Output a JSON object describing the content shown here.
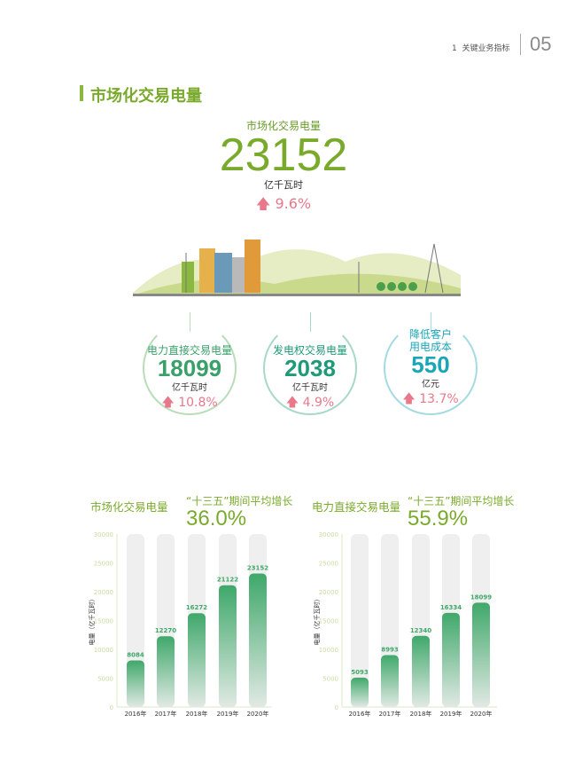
{
  "header": {
    "section_no": "1",
    "section_title": "关键业务指标",
    "page_no": "05"
  },
  "section_title": "市场化交易电量",
  "headline": {
    "label": "市场化交易电量",
    "value": "23152",
    "unit": "亿千瓦时",
    "growth": "9.6%"
  },
  "circles": [
    {
      "label": "电力直接交易电量",
      "value": "18099",
      "unit": "亿千瓦时",
      "growth": "10.8%",
      "color": "#3aa06a",
      "border": "#b9dcb9"
    },
    {
      "label": "发电权交易电量",
      "value": "2038",
      "unit": "亿千瓦时",
      "growth": "4.9%",
      "color": "#1e9a78",
      "border": "#a8d8c8"
    },
    {
      "label": "降低客户\n用电成本",
      "value": "550",
      "unit": "亿元",
      "growth": "13.7%",
      "color": "#1ba6b8",
      "border": "#a4dbe2"
    }
  ],
  "colors": {
    "accent": "#7aaa2c",
    "growth": "#e9788a",
    "bar": "#3fa86a"
  },
  "chart_data": [
    {
      "type": "bar",
      "title": "市场化交易电量",
      "subtitle": "“十三五”期间平均增长",
      "highlight": "36.0%",
      "ylabel": "电量（亿千瓦时）",
      "ylim": [
        0,
        30000
      ],
      "yticks": [
        "0",
        "5000",
        "10000",
        "15000",
        "20000",
        "25000",
        "30000"
      ],
      "categories": [
        "2016年",
        "2017年",
        "2018年",
        "2019年",
        "2020年"
      ],
      "values": [
        8084,
        12270,
        16272,
        21122,
        23152
      ]
    },
    {
      "type": "bar",
      "title": "电力直接交易电量",
      "subtitle": "“十三五”期间平均增长",
      "highlight": "55.9%",
      "ylabel": "电量（亿千瓦时）",
      "ylim": [
        0,
        30000
      ],
      "yticks": [
        "0",
        "5000",
        "10000",
        "15000",
        "20000",
        "25000",
        "30000"
      ],
      "categories": [
        "2016年",
        "2017年",
        "2018年",
        "2019年",
        "2020年"
      ],
      "values": [
        5093,
        8993,
        12340,
        16334,
        18099
      ]
    }
  ]
}
